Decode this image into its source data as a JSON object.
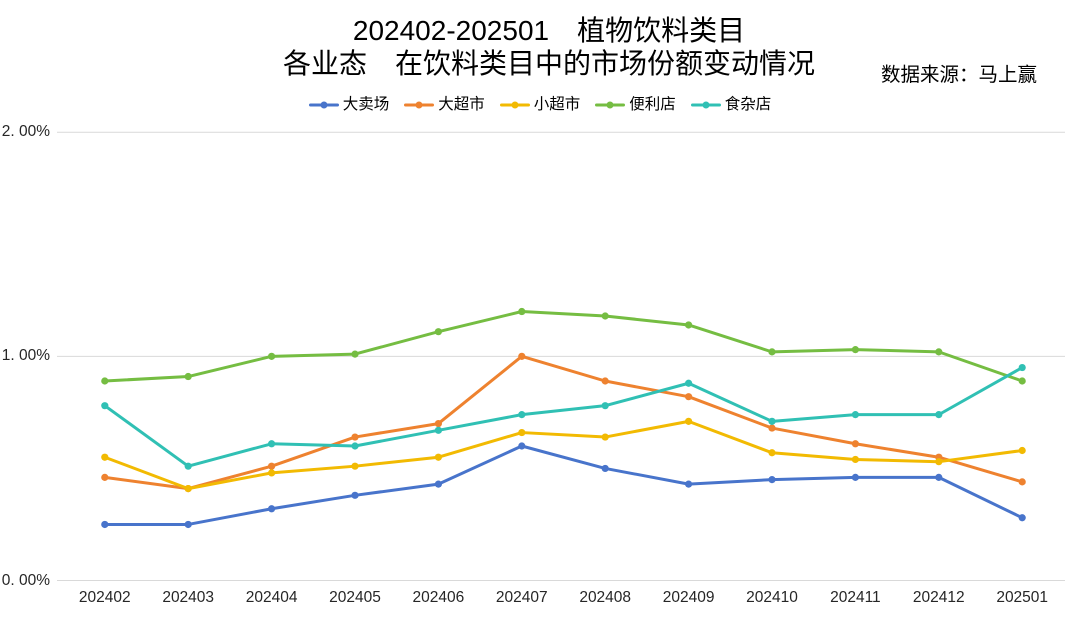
{
  "title": {
    "line1": "202402-202501　植物饮料类目",
    "line2": "各业态　在饮料类目中的市场份额变动情况"
  },
  "source_note": "数据来源：马上赢",
  "chart_data": {
    "type": "line",
    "title": "202402-202501 植物饮料类目 各业态 在饮料类目中的市场份额变动情况",
    "categories": [
      "202402",
      "202403",
      "202404",
      "202405",
      "202406",
      "202407",
      "202408",
      "202409",
      "202410",
      "202411",
      "202412",
      "202501"
    ],
    "series": [
      {
        "name": "大卖场",
        "color": "#4874CB",
        "values": [
          0.25,
          0.25,
          0.32,
          0.38,
          0.43,
          0.6,
          0.5,
          0.43,
          0.45,
          0.46,
          0.46,
          0.28
        ]
      },
      {
        "name": "大超市",
        "color": "#EE822F",
        "values": [
          0.46,
          0.41,
          0.51,
          0.64,
          0.7,
          1.0,
          0.89,
          0.82,
          0.68,
          0.61,
          0.55,
          0.44
        ]
      },
      {
        "name": "小超市",
        "color": "#F2BA02",
        "values": [
          0.55,
          0.41,
          0.48,
          0.51,
          0.55,
          0.66,
          0.64,
          0.71,
          0.57,
          0.54,
          0.53,
          0.58
        ]
      },
      {
        "name": "便利店",
        "color": "#75BD42",
        "values": [
          0.89,
          0.91,
          1.0,
          1.01,
          1.11,
          1.2,
          1.18,
          1.14,
          1.02,
          1.03,
          1.02,
          0.89
        ]
      },
      {
        "name": "食杂店",
        "color": "#30C0B4",
        "values": [
          0.78,
          0.51,
          0.61,
          0.6,
          0.67,
          0.74,
          0.78,
          0.88,
          0.71,
          0.74,
          0.74,
          0.95
        ]
      }
    ],
    "y_axis": {
      "tick_values": [
        0,
        1,
        2
      ],
      "tick_labels": [
        "0. 00%",
        "1. 00%",
        "2. 00%"
      ],
      "ylim": [
        0,
        2
      ]
    },
    "grid": true,
    "grid_color": "#d9d9d9",
    "legend_position": "top",
    "xlabel": "",
    "ylabel": ""
  }
}
